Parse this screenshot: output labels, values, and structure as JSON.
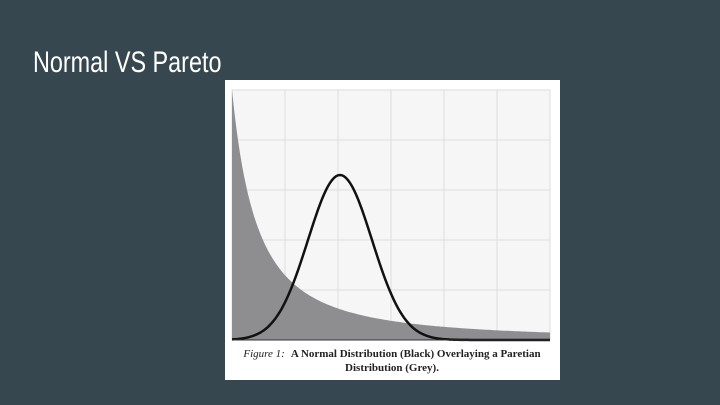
{
  "slide": {
    "title": "Normal VS Pareto",
    "figure": {
      "caption_label": "Figure 1:",
      "caption_line1": "A Normal Distribution (Black) Overlaying a Paretian",
      "caption_line2": "Distribution (Grey)."
    }
  }
}
